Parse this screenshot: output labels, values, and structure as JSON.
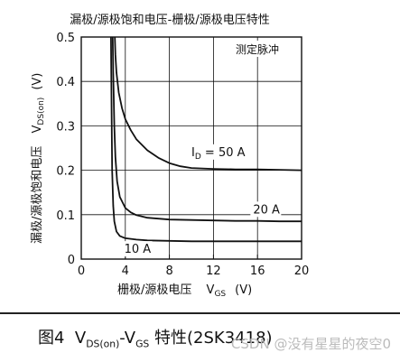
{
  "chart_data": {
    "type": "line",
    "title": "漏极/源极饱和电压-栅极/源极电压特性",
    "annotation": "测定脉冲",
    "xlabel": {
      "text": "栅极/源极电压",
      "symbol": "V",
      "sub": "GS",
      "unit": "(V)"
    },
    "ylabel": {
      "text": "漏极/源极饱和电压",
      "symbol": "V",
      "sub": "DS(on)",
      "unit": "(V)"
    },
    "xlim": [
      0,
      20
    ],
    "ylim": [
      0,
      0.5
    ],
    "xticks": [
      "0",
      "4",
      "8",
      "12",
      "16",
      "20"
    ],
    "yticks": [
      "0",
      "0.1",
      "0.2",
      "0.3",
      "0.4",
      "0.5"
    ],
    "grid": true,
    "series": [
      {
        "name": "I_D = 50 A",
        "label_parts": {
          "symbol": "I",
          "sub": "D",
          "text": " = 50 A"
        },
        "x": [
          3.05,
          3.1,
          3.2,
          3.4,
          3.7,
          4.0,
          4.5,
          5.0,
          6.0,
          7.0,
          8.0,
          9.0,
          10.0,
          12.0,
          14.0,
          16.0,
          18.0,
          20.0
        ],
        "y": [
          0.5,
          0.46,
          0.42,
          0.375,
          0.34,
          0.315,
          0.29,
          0.27,
          0.245,
          0.228,
          0.216,
          0.209,
          0.205,
          0.203,
          0.202,
          0.202,
          0.201,
          0.2
        ]
      },
      {
        "name": "20 A",
        "label_parts": {
          "symbol": "",
          "sub": "",
          "text": "20 A"
        },
        "x": [
          2.85,
          2.9,
          3.0,
          3.1,
          3.25,
          3.5,
          4.0,
          4.5,
          5.0,
          6.0,
          8.0,
          10.0,
          12.0,
          14.0,
          16.0,
          18.0,
          20.0
        ],
        "y": [
          0.5,
          0.42,
          0.3,
          0.23,
          0.175,
          0.14,
          0.115,
          0.105,
          0.099,
          0.093,
          0.089,
          0.088,
          0.087,
          0.086,
          0.086,
          0.085,
          0.085
        ]
      },
      {
        "name": "10 A",
        "label_parts": {
          "symbol": "",
          "sub": "",
          "text": "10 A"
        },
        "x": [
          2.7,
          2.75,
          2.8,
          2.9,
          3.0,
          3.2,
          3.5,
          4.0,
          5.0,
          6.0,
          8.0,
          10.0,
          12.0,
          14.0,
          16.0,
          18.0,
          20.0
        ],
        "y": [
          0.5,
          0.33,
          0.2,
          0.12,
          0.085,
          0.062,
          0.052,
          0.047,
          0.044,
          0.042,
          0.041,
          0.04,
          0.04,
          0.04,
          0.04,
          0.04,
          0.04
        ]
      }
    ]
  },
  "caption": {
    "prefix": "图4",
    "v1_symbol": "V",
    "v1_sub": "DS(on)",
    "dash": "-",
    "v2_symbol": "V",
    "v2_sub": "GS",
    "suffix": " 特性(2SK3418)"
  },
  "watermark": "CSDN @没有星星的夜空0"
}
